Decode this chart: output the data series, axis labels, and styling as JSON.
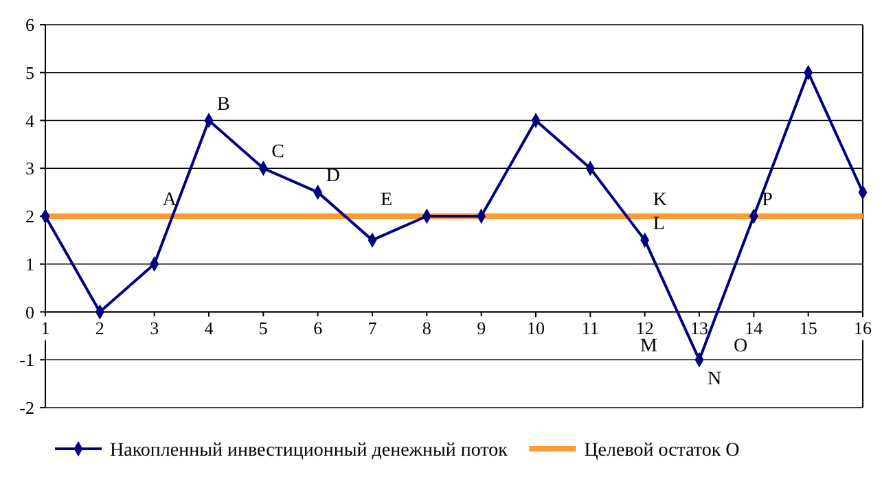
{
  "chart_data": {
    "type": "line",
    "categories": [
      "1",
      "2",
      "3",
      "4",
      "5",
      "6",
      "7",
      "8",
      "9",
      "10",
      "11",
      "12",
      "13",
      "14",
      "15",
      "16"
    ],
    "series": [
      {
        "name": "Накопленный инвестиционный денежный поток",
        "color": "#000080",
        "values": [
          2,
          0,
          1,
          4,
          3,
          2.5,
          1.5,
          2,
          2,
          4,
          3,
          1.5,
          -1,
          2,
          5,
          2.5
        ],
        "marker": "diamond"
      },
      {
        "name": "Целевой остаток О",
        "color": "#ff9933",
        "values": [
          2,
          2,
          2,
          2,
          2,
          2,
          2,
          2,
          2,
          2,
          2,
          2,
          2,
          2,
          2,
          2
        ],
        "marker": "none",
        "line_style": "solid"
      }
    ],
    "ylim": [
      -2,
      6
    ],
    "yticks": [
      -2,
      -1,
      0,
      1,
      2,
      3,
      4,
      5,
      6
    ],
    "grid": "y",
    "legend": "bottom",
    "annotations": [
      {
        "text": "A",
        "x": "3",
        "y": 2
      },
      {
        "text": "B",
        "x": "4",
        "y": 4
      },
      {
        "text": "C",
        "x": "5",
        "y": 3
      },
      {
        "text": "D",
        "x": "6",
        "y": 2.5
      },
      {
        "text": "E",
        "x": "7",
        "y": 2
      },
      {
        "text": "K",
        "x": "12",
        "y": 2
      },
      {
        "text": "L",
        "x": "12",
        "y": 1.5
      },
      "M",
      {
        "text": "N",
        "x": "13",
        "y": -1
      },
      "O",
      {
        "text": "P",
        "x": "14",
        "y": 2
      }
    ]
  }
}
